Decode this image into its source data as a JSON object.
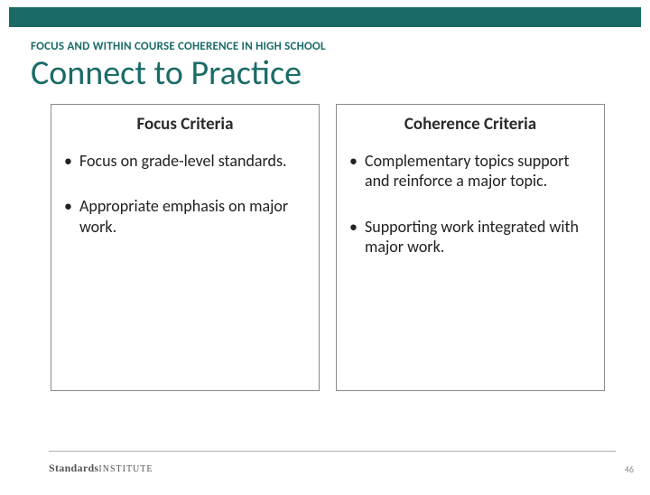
{
  "colors": {
    "accent": "#1a6b68",
    "text": "#222222",
    "border": "#8a8a8a",
    "rule": "#b0b0b0",
    "background": "#ffffff",
    "pagenum": "#888888"
  },
  "kicker": "FOCUS AND WITHIN COURSE COHERENCE IN HIGH SCHOOL",
  "title": "Connect to Practice",
  "columns": {
    "left": {
      "header": "Focus Criteria",
      "bullets": [
        "Focus on grade-level standards.",
        "Appropriate emphasis on major work."
      ]
    },
    "right": {
      "header": "Coherence Criteria",
      "bullets": [
        "Complementary topics support and reinforce a major topic.",
        "Supporting work integrated with major work."
      ]
    }
  },
  "brand": {
    "bold": "Standards",
    "light": "INSTITUTE"
  },
  "page_number": "46"
}
